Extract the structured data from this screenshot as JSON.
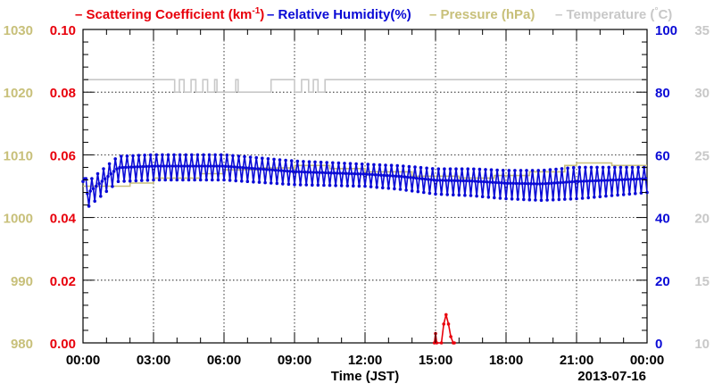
{
  "chart_data": {
    "type": "line",
    "title": "",
    "legend": [
      {
        "key": "scattering",
        "dash": "–",
        "text": "Scattering Coefficient (km",
        "sup": "-1",
        "suffix": ")",
        "color": "#e8000b"
      },
      {
        "key": "humidity",
        "dash": "–",
        "text": "Relative Humidity(%)",
        "color": "#0a0ad6"
      },
      {
        "key": "pressure",
        "dash": "–",
        "text": "Pressure (hPa)",
        "color": "#c8c07a"
      },
      {
        "key": "temperature",
        "dash": "–",
        "text": "Temperature (",
        "sup": "°",
        "suffix": "C)",
        "color": "#c8c8c8"
      }
    ],
    "xlabel": "Time (JST)",
    "date_label": "2013-07-16",
    "x_ticks": [
      "00:00",
      "03:00",
      "06:00",
      "09:00",
      "12:00",
      "15:00",
      "18:00",
      "21:00",
      "00:00"
    ],
    "x_range_hours": [
      0,
      24
    ],
    "grid": true,
    "axes": {
      "pressure": {
        "side": "left-outer",
        "ticks": [
          "1030",
          "1020",
          "1010",
          "1000",
          "990",
          "980"
        ],
        "range": [
          980,
          1030
        ],
        "color": "#c8c07a"
      },
      "scattering": {
        "side": "left",
        "ticks": [
          "0.10",
          "0.08",
          "0.06",
          "0.04",
          "0.02",
          "0.00"
        ],
        "range": [
          0,
          0.1
        ],
        "color": "#e8000b"
      },
      "humidity": {
        "side": "right",
        "ticks": [
          "100",
          "80",
          "60",
          "40",
          "20",
          "0"
        ],
        "range": [
          0,
          100
        ],
        "color": "#0a0ad6"
      },
      "temperature": {
        "side": "right-outer",
        "ticks": [
          "35",
          "30",
          "25",
          "20",
          "15",
          "10"
        ],
        "range": [
          10,
          35
        ],
        "color": "#c8c8c8"
      }
    },
    "series": [
      {
        "key": "temperature",
        "color": "#c8c8c8",
        "marker": false,
        "points": [
          [
            0,
            31
          ],
          [
            3.9,
            31
          ],
          [
            3.9,
            30
          ],
          [
            4.1,
            30
          ],
          [
            4.1,
            31
          ],
          [
            4.3,
            31
          ],
          [
            4.3,
            30
          ],
          [
            4.6,
            30
          ],
          [
            4.6,
            31
          ],
          [
            4.8,
            31
          ],
          [
            4.8,
            30
          ],
          [
            5.1,
            30
          ],
          [
            5.1,
            31
          ],
          [
            5.3,
            31
          ],
          [
            5.3,
            30
          ],
          [
            5.6,
            30
          ],
          [
            5.6,
            31
          ],
          [
            5.7,
            31
          ],
          [
            5.7,
            30
          ],
          [
            6.5,
            30
          ],
          [
            6.5,
            31
          ],
          [
            6.6,
            31
          ],
          [
            6.6,
            30
          ],
          [
            8.0,
            30
          ],
          [
            8.0,
            31
          ],
          [
            9.0,
            31
          ],
          [
            9.0,
            30
          ],
          [
            9.3,
            30
          ],
          [
            9.3,
            31
          ],
          [
            9.6,
            31
          ],
          [
            9.6,
            30
          ],
          [
            9.8,
            30
          ],
          [
            9.8,
            31
          ],
          [
            10.0,
            31
          ],
          [
            10.0,
            30
          ],
          [
            10.3,
            30
          ],
          [
            10.3,
            31
          ],
          [
            24,
            31
          ]
        ]
      },
      {
        "key": "pressure",
        "color": "#c8c07a",
        "marker": false,
        "points": [
          [
            0,
            1005
          ],
          [
            2.0,
            1005
          ],
          [
            2.0,
            1005.5
          ],
          [
            3.0,
            1005.5
          ],
          [
            3.0,
            1006.3
          ],
          [
            5.0,
            1006.3
          ],
          [
            5.0,
            1007.0
          ],
          [
            6.0,
            1007.0
          ],
          [
            6.0,
            1007.6
          ],
          [
            7.5,
            1007.6
          ],
          [
            7.5,
            1007.9
          ],
          [
            9.0,
            1007.9
          ],
          [
            9.0,
            1008.3
          ],
          [
            10.5,
            1008.3
          ],
          [
            10.5,
            1007.8
          ],
          [
            12.0,
            1007.8
          ],
          [
            12.0,
            1007.3
          ],
          [
            14.0,
            1007.3
          ],
          [
            14.0,
            1006.6
          ],
          [
            16.0,
            1006.6
          ],
          [
            16.0,
            1006.3
          ],
          [
            17.5,
            1006.3
          ],
          [
            17.5,
            1006.7
          ],
          [
            19.0,
            1006.7
          ],
          [
            19.0,
            1007.3
          ],
          [
            20.5,
            1007.3
          ],
          [
            20.5,
            1008.3
          ],
          [
            21.0,
            1008.3
          ],
          [
            21.0,
            1008.7
          ],
          [
            22.5,
            1008.7
          ],
          [
            22.5,
            1008.3
          ],
          [
            24,
            1008.3
          ]
        ]
      },
      {
        "key": "scattering",
        "color": "#e8000b",
        "marker": true,
        "points": [
          [
            14.95,
            0.0
          ],
          [
            15.0,
            0.003
          ],
          [
            15.05,
            0.0
          ],
          [
            15.25,
            0.0
          ],
          [
            15.35,
            0.006
          ],
          [
            15.45,
            0.009
          ],
          [
            15.55,
            0.006
          ],
          [
            15.65,
            0.002
          ],
          [
            15.75,
            0.0
          ],
          [
            15.8,
            0.0
          ]
        ]
      },
      {
        "key": "humidity",
        "color": "#0a0ad6",
        "marker": true,
        "pattern": "oscillating",
        "period_hours": 0.25,
        "points": [
          [
            0,
            59.5
          ],
          [
            0.15,
            51
          ],
          [
            1.5,
            59.5
          ],
          [
            3.0,
            60
          ],
          [
            4.5,
            60
          ],
          [
            6.0,
            60
          ],
          [
            7.5,
            59
          ],
          [
            9.0,
            58
          ],
          [
            10.5,
            57.5
          ],
          [
            12.0,
            57
          ],
          [
            13.5,
            56.5
          ],
          [
            15.0,
            55.5
          ],
          [
            16.5,
            55.5
          ],
          [
            18.0,
            55
          ],
          [
            19.5,
            55
          ],
          [
            21.0,
            56
          ],
          [
            22.5,
            56
          ],
          [
            24,
            56
          ]
        ],
        "amplitude_low": [
          [
            0,
            8
          ],
          [
            6,
            8
          ],
          [
            12,
            7
          ],
          [
            18,
            9
          ],
          [
            21,
            10
          ],
          [
            24,
            8
          ]
        ]
      }
    ]
  }
}
